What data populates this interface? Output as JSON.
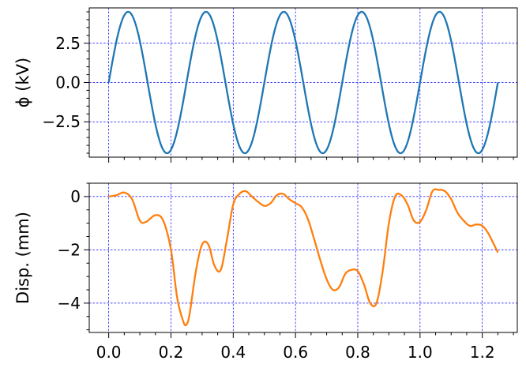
{
  "chart_data": [
    {
      "type": "line",
      "ylabel": "ϕ (kV)",
      "xlim": [
        -0.0625,
        1.3125
      ],
      "ylim": [
        -4.75,
        4.75
      ],
      "xticks": [
        0.0,
        0.2,
        0.4,
        0.6,
        0.8,
        1.0,
        1.2
      ],
      "yticks": [
        -2.5,
        0.0,
        2.5
      ],
      "ytick_labels": [
        "−2.5",
        "0.0",
        "2.5"
      ],
      "grid": true,
      "series": [
        {
          "color": "#1f77b4",
          "x": [
            0.0,
            0.0625,
            0.125,
            0.1875,
            0.25,
            0.3125,
            0.375,
            0.4375,
            0.5,
            0.5625,
            0.625,
            0.6875,
            0.75,
            0.8125,
            0.875,
            0.9375,
            1.0,
            1.0625,
            1.125,
            1.1875,
            1.25
          ],
          "y": [
            0.0,
            4.5,
            0.0,
            -4.5,
            0.0,
            4.5,
            0.0,
            -4.5,
            0.0,
            4.5,
            0.0,
            -4.5,
            0.0,
            4.5,
            0.0,
            -4.5,
            0.0,
            4.5,
            0.0,
            -4.5,
            0.0
          ],
          "shape": "sinusoid",
          "amplitude": 4.5,
          "period": 0.25
        }
      ]
    },
    {
      "type": "line",
      "ylabel": "Disp. (mm)",
      "xlim": [
        -0.0625,
        1.3125
      ],
      "ylim": [
        -5.1,
        0.5
      ],
      "xticks": [
        0.0,
        0.2,
        0.4,
        0.6,
        0.8,
        1.0,
        1.2
      ],
      "xtick_labels": [
        "0.0",
        "0.2",
        "0.4",
        "0.6",
        "0.8",
        "1.0",
        "1.2"
      ],
      "yticks": [
        -4,
        -2,
        0
      ],
      "ytick_labels": [
        "−4",
        "−2",
        "0"
      ],
      "grid": true,
      "series": [
        {
          "color": "#ff7f0e",
          "x": [
            0.0,
            0.025,
            0.05,
            0.075,
            0.1,
            0.12,
            0.15,
            0.175,
            0.2,
            0.22,
            0.24,
            0.25,
            0.26,
            0.28,
            0.3,
            0.32,
            0.34,
            0.36,
            0.38,
            0.4,
            0.42,
            0.44,
            0.46,
            0.48,
            0.5,
            0.52,
            0.54,
            0.56,
            0.58,
            0.6,
            0.62,
            0.64,
            0.66,
            0.68,
            0.7,
            0.72,
            0.74,
            0.76,
            0.78,
            0.8,
            0.82,
            0.84,
            0.86,
            0.88,
            0.9,
            0.92,
            0.94,
            0.96,
            0.98,
            1.0,
            1.02,
            1.04,
            1.06,
            1.08,
            1.1,
            1.12,
            1.14,
            1.16,
            1.18,
            1.2,
            1.22,
            1.25
          ],
          "y": [
            0.0,
            0.05,
            0.15,
            -0.1,
            -0.9,
            -0.95,
            -0.7,
            -0.9,
            -2.0,
            -3.8,
            -4.7,
            -4.8,
            -4.4,
            -2.8,
            -1.8,
            -1.8,
            -2.6,
            -2.75,
            -1.6,
            -0.3,
            0.1,
            0.2,
            0.0,
            -0.2,
            -0.35,
            -0.25,
            0.05,
            0.1,
            -0.1,
            -0.25,
            -0.4,
            -0.85,
            -1.6,
            -2.4,
            -3.1,
            -3.5,
            -3.4,
            -2.9,
            -2.75,
            -2.8,
            -3.3,
            -4.0,
            -4.0,
            -2.8,
            -1.0,
            0.0,
            0.05,
            -0.3,
            -0.9,
            -0.95,
            -0.5,
            0.2,
            0.25,
            0.2,
            -0.1,
            -0.6,
            -0.9,
            -1.1,
            -1.05,
            -1.1,
            -1.4,
            -2.1
          ]
        }
      ]
    }
  ]
}
